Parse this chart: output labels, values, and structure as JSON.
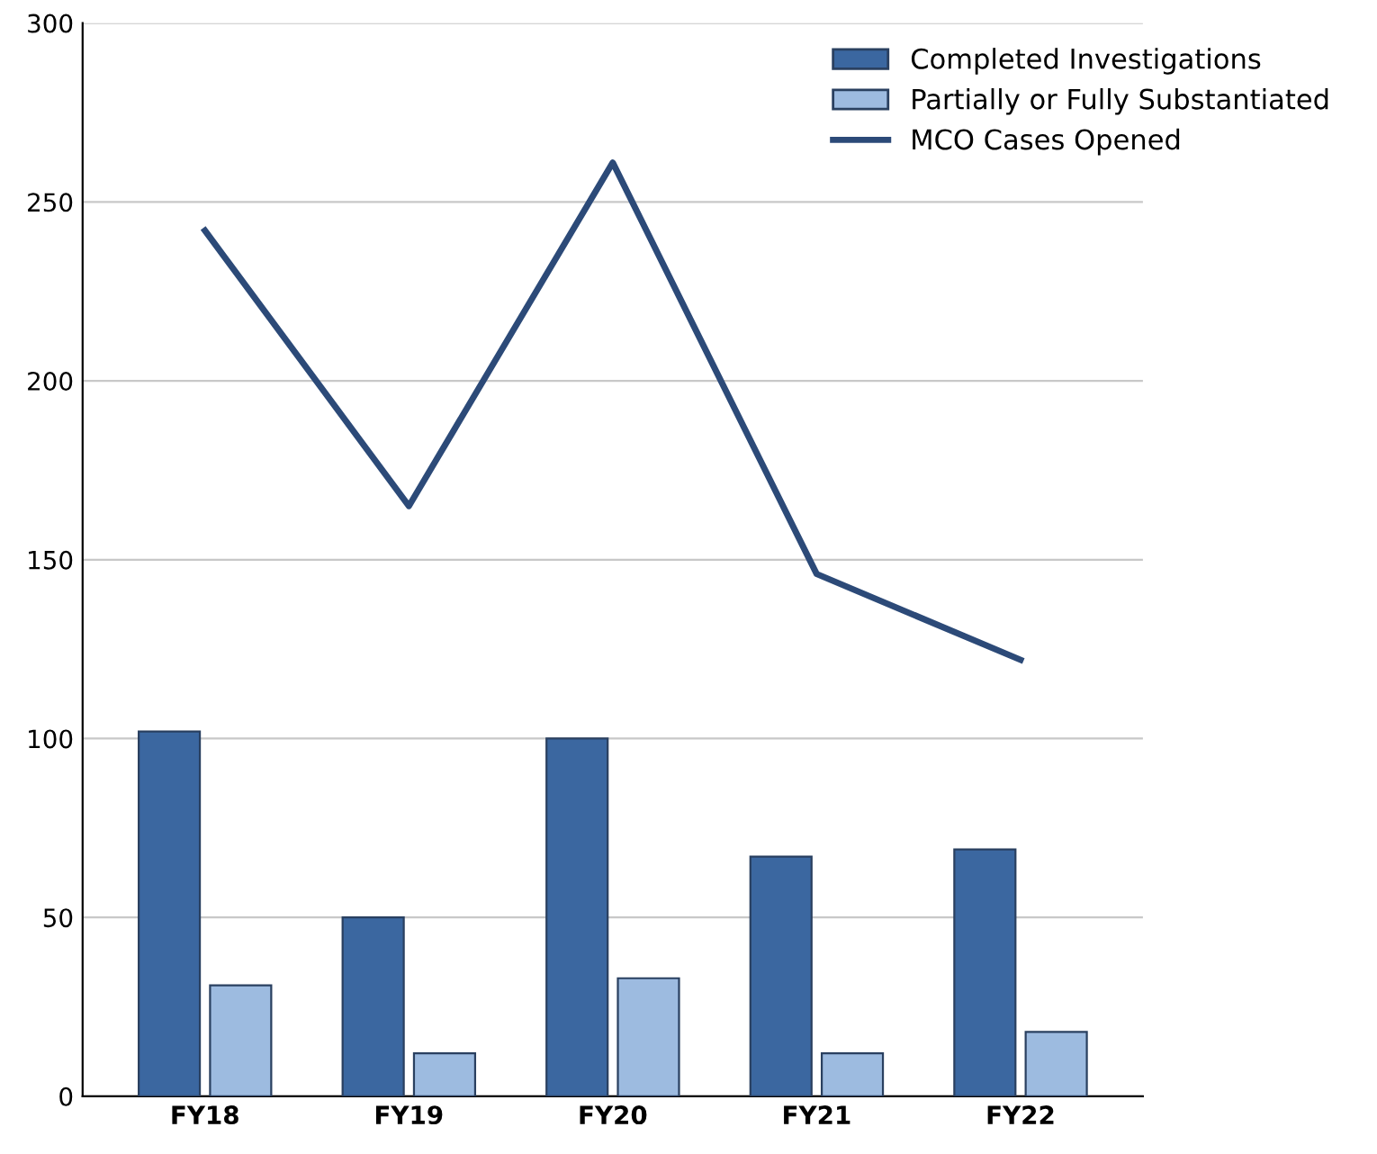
{
  "chart_data": {
    "type": "bar",
    "categories": [
      "FY18",
      "FY19",
      "FY20",
      "FY21",
      "FY22"
    ],
    "series": [
      {
        "name": "Completed Investigations",
        "color": "#3b67a0",
        "values": [
          102,
          50,
          100,
          67,
          69
        ]
      },
      {
        "name": "Partially or Fully Substantiated",
        "color": "#9dbbe0",
        "values": [
          31,
          12,
          33,
          12,
          18
        ]
      },
      {
        "name": "MCO Cases Opened",
        "type": "line",
        "color": "#2c4a78",
        "values": [
          242,
          165,
          261,
          146,
          122
        ]
      }
    ],
    "ylim": [
      0,
      300
    ],
    "yticks": [
      0,
      50,
      100,
      150,
      200,
      250,
      300
    ],
    "grid": "y",
    "legend": "top right",
    "marker": "none",
    "line_style": "solid"
  }
}
